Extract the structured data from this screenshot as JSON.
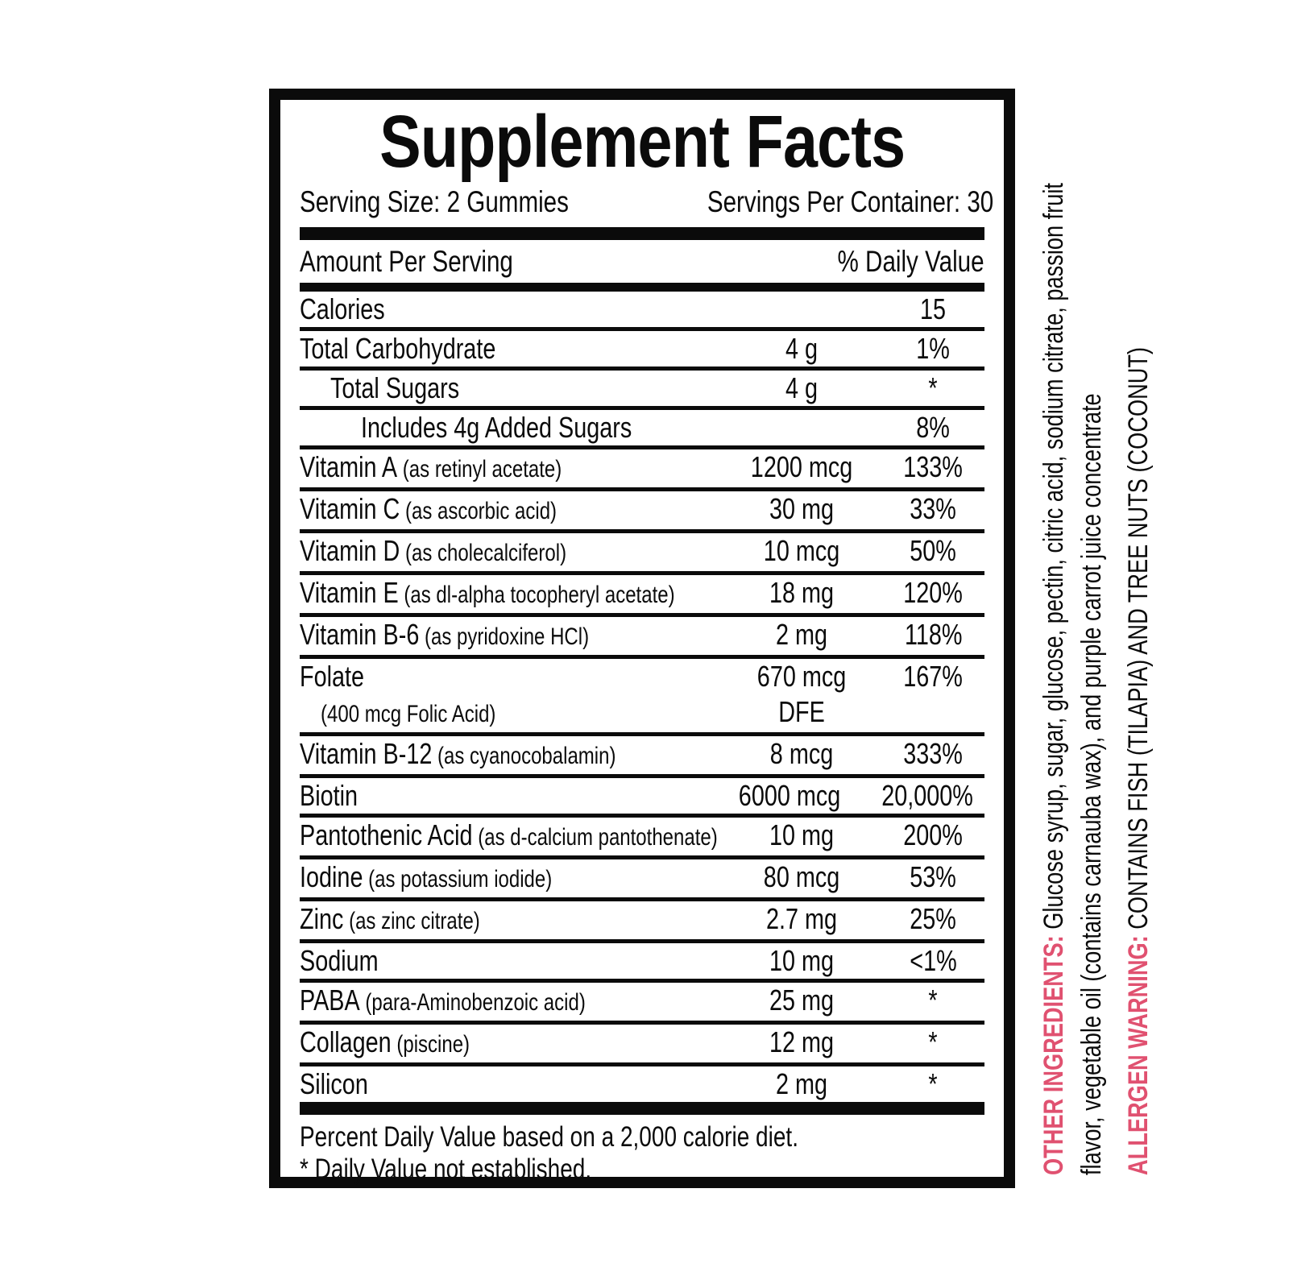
{
  "panel": {
    "title": "Supplement Facts",
    "serving_size": "Serving Size: 2 Gummies",
    "servings_per_container": "Servings Per Container: 30",
    "amount_header": "Amount Per Serving",
    "dv_header": "% Daily Value",
    "rows": [
      {
        "name": "Calories",
        "amount": "",
        "dv": "15",
        "indent": 0
      },
      {
        "name": "Total Carbohydrate",
        "amount": "4 g",
        "dv": "1%",
        "indent": 0
      },
      {
        "name": "Total Sugars",
        "amount": "4 g",
        "dv": "*",
        "indent": 1
      },
      {
        "name": "Includes 4g Added Sugars",
        "amount": "",
        "dv": "8%",
        "indent": 2
      },
      {
        "name": "Vitamin A",
        "sub": "(as retinyl acetate)",
        "amount": "1200 mcg",
        "dv": "133%",
        "indent": 0
      },
      {
        "name": "Vitamin C",
        "sub": "(as ascorbic acid)",
        "amount": "30 mg",
        "dv": "33%",
        "indent": 0
      },
      {
        "name": "Vitamin D",
        "sub": "(as cholecalciferol)",
        "amount": "10 mcg",
        "dv": "50%",
        "indent": 0
      },
      {
        "name": "Vitamin E",
        "sub": "(as dl-alpha tocopheryl acetate)",
        "amount": "18 mg",
        "dv": "120%",
        "indent": 0
      },
      {
        "name": "Vitamin B-6",
        "sub": "(as pyridoxine HCl)",
        "amount": "2 mg",
        "dv": "118%",
        "indent": 0
      },
      {
        "name": "Folate",
        "name2": "(400 mcg Folic Acid)",
        "amount": "670 mcg",
        "amount2": "DFE",
        "dv": "167%",
        "indent": 0
      },
      {
        "name": "Vitamin B-12",
        "sub": "(as cyanocobalamin)",
        "amount": "8 mcg",
        "dv": "333%",
        "indent": 0
      },
      {
        "name": "Biotin",
        "amount": "6000 mcg",
        "dv": "20,000%",
        "indent": 0
      },
      {
        "name": "Pantothenic Acid",
        "sub": "(as d-calcium pantothenate)",
        "amount": "10 mg",
        "dv": "200%",
        "indent": 0
      },
      {
        "name": "Iodine",
        "sub": "(as potassium iodide)",
        "amount": "80 mcg",
        "dv": "53%",
        "indent": 0
      },
      {
        "name": "Zinc",
        "sub": "(as zinc citrate)",
        "amount": "2.7 mg",
        "dv": "25%",
        "indent": 0
      },
      {
        "name": "Sodium",
        "amount": "10 mg",
        "dv": "<1%",
        "indent": 0
      },
      {
        "name": "PABA",
        "sub": "(para-Aminobenzoic acid)",
        "amount": "25 mg",
        "dv": "*",
        "indent": 0
      },
      {
        "name": "Collagen",
        "sub": "(piscine)",
        "amount": "12 mg",
        "dv": "*",
        "indent": 0
      },
      {
        "name": "Silicon",
        "amount": "2 mg",
        "dv": "*",
        "indent": 0
      }
    ],
    "footnote1": "Percent Daily Value based on a 2,000 calorie diet.",
    "footnote2": "* Daily Value not established."
  },
  "side_notes": {
    "other_ingredients": {
      "label": "OTHER INGREDIENTS:",
      "line1": " Glucose syrup, sugar, glucose, pectin, citric acid, sodium citrate, passion fruit",
      "line2": "flavor, vegetable oil (contains carnauba wax), and purple carrot juice concentrate"
    },
    "allergen_warning": {
      "label": "ALLERGEN WARNING:",
      "text": " CONTAINS FISH (TILAPIA) AND TREE NUTS (COCONUT)"
    }
  },
  "colors": {
    "accent_pink": "#e05170",
    "text_black": "#0b0b0b"
  }
}
